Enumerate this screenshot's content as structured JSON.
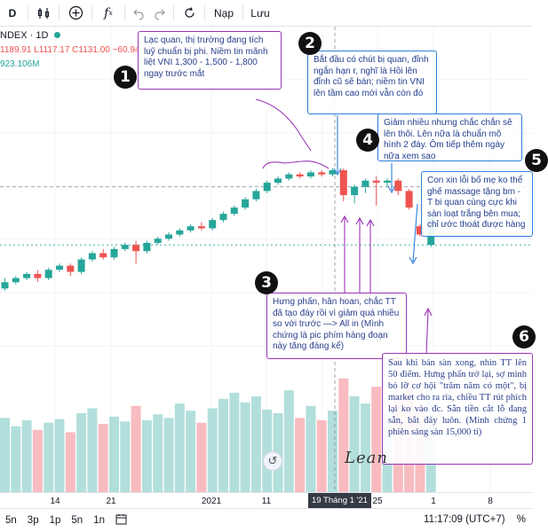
{
  "toolbar": {
    "interval": "D",
    "undo_icon": "undo-icon",
    "redo_icon": "redo-icon",
    "load_label": "Nạp",
    "save_label": "Lưu"
  },
  "legend": {
    "symbol": "NDEX · 1D",
    "ohlc": "1189.91  L1117.17  C1131.00  −60.94  −5.1",
    "volume": "923.106M"
  },
  "annotations": {
    "n1": "Lạc quan, thị trường đang tích luỹ chuẩn bị phi. Niềm tin mãnh liệt VNI 1,300 - 1,500 - 1,800 ngay trước mắt",
    "n2": "Bắt đầu có chút bị quan, đỉnh ngắn hạn r, nghĩ là Hồi lên đỉnh cũ sẽ bán; niềm tin VNI lên tầm cao mới vẫn còn đó",
    "n3": "Hưng phấn, hân hoan, chắc TT đã tạo đáy rồi vì giảm quá nhiều so với trước —> All in (Mình chứng là pic phím hàng đoạn này tăng đáng kể)",
    "n4": "Giảm nhiều nhưng chắc chắn sẽ lên thôi. Lên nữa là chuẩn mô hình 2 đáy. Ôm tiếp thêm ngày nữa xem sao",
    "n5": "Con xin lỗi bố mẹ ko thể ghế massage tặng bm - T bi quan cùng cực khi sàn loạt trắng bên mua; chỉ ước thoát được hàng",
    "n6": "Sau khi bán sàn xong, nhìn TT lên 50 điểm. Hưng phấn trở lại, sợ mình bỏ lỡ cơ hội \"trăm năm có một\", bị market cho ra rìa, chiều TT rút phích lại ko vào đc. Sẵn tiền cắt lỗ đang sẵn, bắt đáy luôn. (Minh chứng 1 phiên sáng sàn 15,000 tỉ)"
  },
  "badges": {
    "b1": "1",
    "b2": "2",
    "b3": "3",
    "b4": "4",
    "b5": "5",
    "b6": "6"
  },
  "signature": "Lean",
  "xaxis": {
    "ticks": [
      "14",
      "21",
      "2021",
      "11",
      "25",
      "1",
      "8"
    ],
    "cursor_label": "19 Tháng 1 '21"
  },
  "bottombar": {
    "ranges": [
      "5n",
      "3p",
      "1p",
      "5n",
      "1n"
    ],
    "time": "11:17:09 (UTC+7)",
    "pct": "%"
  },
  "colors": {
    "up": "#26a69a",
    "down": "#ef5350",
    "up_vol": "#b2dfdb",
    "down_vol": "#f8bbc0",
    "note_purple": "#9b36b7",
    "note_blue": "#2f7fd9"
  },
  "chart_data": {
    "type": "candlestick",
    "candles": [
      {
        "o": 1.0,
        "c": 1.03,
        "h": 1.05,
        "l": 0.99
      },
      {
        "o": 1.03,
        "c": 1.05,
        "h": 1.06,
        "l": 1.02
      },
      {
        "o": 1.05,
        "c": 1.07,
        "h": 1.08,
        "l": 1.04
      },
      {
        "o": 1.07,
        "c": 1.05,
        "h": 1.09,
        "l": 1.03
      },
      {
        "o": 1.05,
        "c": 1.09,
        "h": 1.1,
        "l": 1.04
      },
      {
        "o": 1.09,
        "c": 1.11,
        "h": 1.12,
        "l": 1.08
      },
      {
        "o": 1.11,
        "c": 1.08,
        "h": 1.12,
        "l": 1.06
      },
      {
        "o": 1.08,
        "c": 1.14,
        "h": 1.15,
        "l": 1.07
      },
      {
        "o": 1.14,
        "c": 1.17,
        "h": 1.18,
        "l": 1.13
      },
      {
        "o": 1.17,
        "c": 1.15,
        "h": 1.19,
        "l": 1.14
      },
      {
        "o": 1.15,
        "c": 1.19,
        "h": 1.2,
        "l": 1.14
      },
      {
        "o": 1.19,
        "c": 1.21,
        "h": 1.22,
        "l": 1.18
      },
      {
        "o": 1.21,
        "c": 1.18,
        "h": 1.23,
        "l": 1.12
      },
      {
        "o": 1.18,
        "c": 1.22,
        "h": 1.23,
        "l": 1.17
      },
      {
        "o": 1.22,
        "c": 1.24,
        "h": 1.25,
        "l": 1.21
      },
      {
        "o": 1.24,
        "c": 1.26,
        "h": 1.27,
        "l": 1.23
      },
      {
        "o": 1.26,
        "c": 1.28,
        "h": 1.29,
        "l": 1.25
      },
      {
        "o": 1.28,
        "c": 1.3,
        "h": 1.31,
        "l": 1.27
      },
      {
        "o": 1.3,
        "c": 1.29,
        "h": 1.32,
        "l": 1.28
      },
      {
        "o": 1.29,
        "c": 1.33,
        "h": 1.34,
        "l": 1.28
      },
      {
        "o": 1.33,
        "c": 1.36,
        "h": 1.37,
        "l": 1.32
      },
      {
        "o": 1.36,
        "c": 1.39,
        "h": 1.4,
        "l": 1.35
      },
      {
        "o": 1.39,
        "c": 1.43,
        "h": 1.44,
        "l": 1.38
      },
      {
        "o": 1.43,
        "c": 1.47,
        "h": 1.48,
        "l": 1.42
      },
      {
        "o": 1.47,
        "c": 1.51,
        "h": 1.52,
        "l": 1.46
      },
      {
        "o": 1.51,
        "c": 1.53,
        "h": 1.54,
        "l": 1.5
      },
      {
        "o": 1.53,
        "c": 1.55,
        "h": 1.56,
        "l": 1.52
      },
      {
        "o": 1.55,
        "c": 1.54,
        "h": 1.56,
        "l": 1.53
      },
      {
        "o": 1.54,
        "c": 1.56,
        "h": 1.57,
        "l": 1.53
      },
      {
        "o": 1.56,
        "c": 1.55,
        "h": 1.57,
        "l": 1.54
      },
      {
        "o": 1.55,
        "c": 1.57,
        "h": 1.58,
        "l": 1.54
      },
      {
        "o": 1.57,
        "c": 1.45,
        "h": 1.58,
        "l": 1.42
      },
      {
        "o": 1.45,
        "c": 1.49,
        "h": 1.5,
        "l": 1.41
      },
      {
        "o": 1.49,
        "c": 1.52,
        "h": 1.53,
        "l": 1.46
      },
      {
        "o": 1.52,
        "c": 1.51,
        "h": 1.54,
        "l": 1.4
      },
      {
        "o": 1.51,
        "c": 1.52,
        "h": 1.53,
        "l": 1.49
      },
      {
        "o": 1.52,
        "c": 1.47,
        "h": 1.53,
        "l": 1.45
      },
      {
        "o": 1.47,
        "c": 1.39,
        "h": 1.48,
        "l": 1.38
      },
      {
        "o": 1.3,
        "c": 1.26,
        "h": 1.31,
        "l": 1.25
      },
      {
        "o": 1.21,
        "c": 1.35,
        "h": 1.36,
        "l": 1.2
      }
    ],
    "volumes": [
      {
        "v": 0.62,
        "up": true
      },
      {
        "v": 0.55,
        "up": true
      },
      {
        "v": 0.6,
        "up": true
      },
      {
        "v": 0.52,
        "up": false
      },
      {
        "v": 0.58,
        "up": true
      },
      {
        "v": 0.61,
        "up": true
      },
      {
        "v": 0.5,
        "up": false
      },
      {
        "v": 0.66,
        "up": true
      },
      {
        "v": 0.7,
        "up": true
      },
      {
        "v": 0.57,
        "up": false
      },
      {
        "v": 0.63,
        "up": true
      },
      {
        "v": 0.59,
        "up": true
      },
      {
        "v": 0.72,
        "up": false
      },
      {
        "v": 0.6,
        "up": true
      },
      {
        "v": 0.65,
        "up": true
      },
      {
        "v": 0.62,
        "up": true
      },
      {
        "v": 0.74,
        "up": true
      },
      {
        "v": 0.68,
        "up": true
      },
      {
        "v": 0.58,
        "up": false
      },
      {
        "v": 0.7,
        "up": true
      },
      {
        "v": 0.78,
        "up": true
      },
      {
        "v": 0.83,
        "up": true
      },
      {
        "v": 0.75,
        "up": true
      },
      {
        "v": 0.8,
        "up": true
      },
      {
        "v": 0.69,
        "up": true
      },
      {
        "v": 0.66,
        "up": true
      },
      {
        "v": 0.85,
        "up": true
      },
      {
        "v": 0.62,
        "up": false
      },
      {
        "v": 0.72,
        "up": true
      },
      {
        "v": 0.6,
        "up": false
      },
      {
        "v": 0.68,
        "up": true
      },
      {
        "v": 0.95,
        "up": false
      },
      {
        "v": 0.8,
        "up": true
      },
      {
        "v": 0.74,
        "up": true
      },
      {
        "v": 0.88,
        "up": false
      },
      {
        "v": 0.62,
        "up": true
      },
      {
        "v": 0.78,
        "up": false
      },
      {
        "v": 0.92,
        "up": false
      },
      {
        "v": 0.7,
        "up": false
      },
      {
        "v": 0.88,
        "up": true
      }
    ],
    "last_close_line": 1.21,
    "cursor_line": 1.49
  }
}
